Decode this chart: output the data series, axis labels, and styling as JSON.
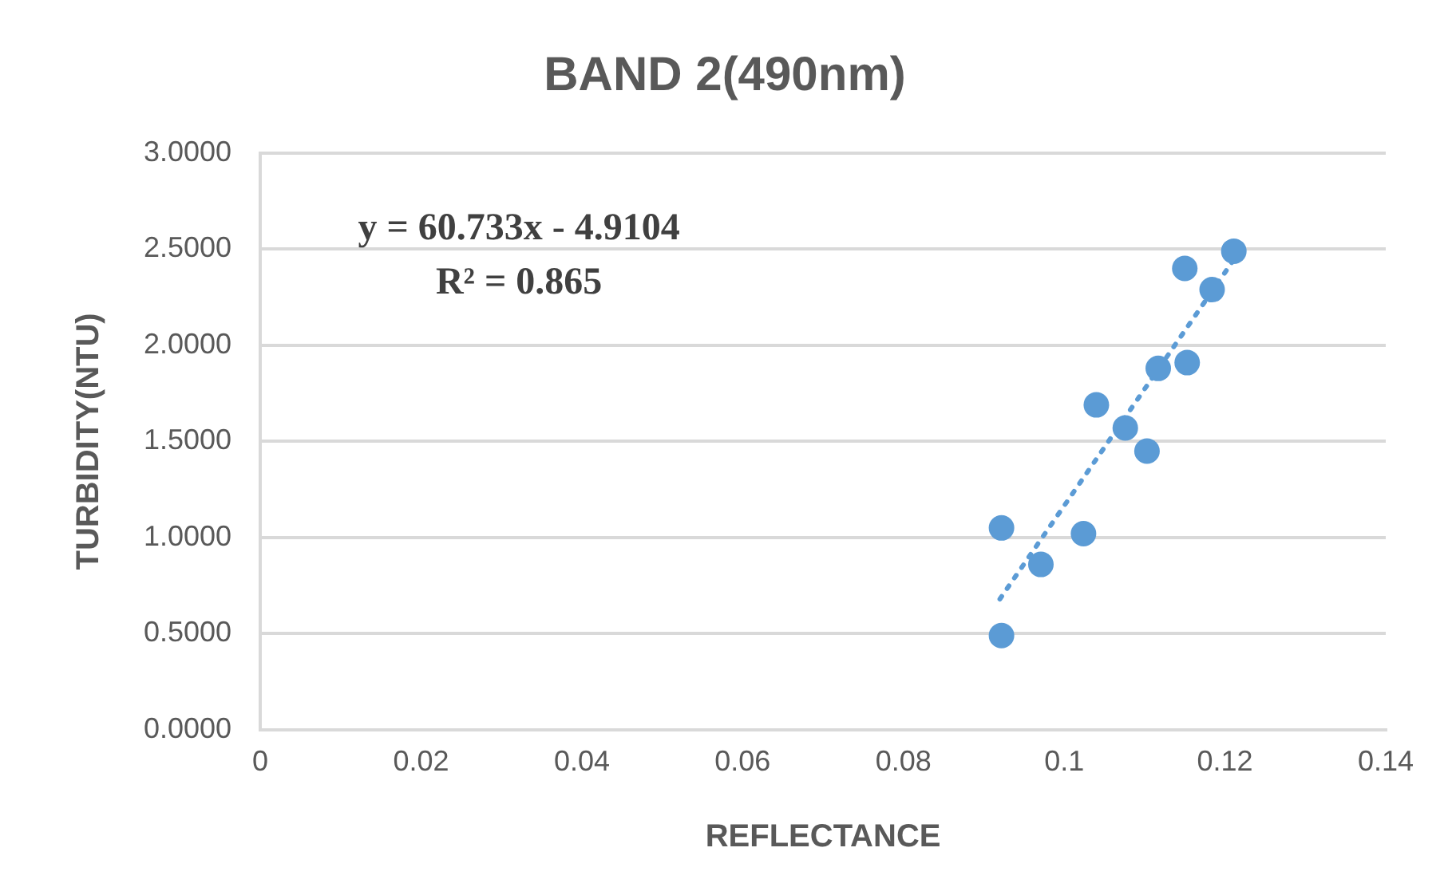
{
  "chart_data": {
    "type": "scatter",
    "title": "BAND 2(490nm)",
    "xlabel": "REFLECTANCE",
    "ylabel": "TURBIDITY(NTU)",
    "annotations": [
      "y = 60.733x - 4.9104",
      "R² = 0.865"
    ],
    "series": [
      {
        "color": "#5b9bd5",
        "marker": "circle",
        "x": [
          0.0922,
          0.0922,
          0.0971,
          0.1024,
          0.104,
          0.1076,
          0.1103,
          0.1117,
          0.1153,
          0.115,
          0.1184,
          0.1211
        ],
        "values": [
          1.05,
          0.49,
          0.86,
          1.02,
          1.69,
          1.57,
          1.45,
          1.88,
          1.91,
          2.4,
          2.29,
          2.49
        ]
      },
      {
        "type": "line",
        "color": "#5b9bd5",
        "marker": "none",
        "line_style": "dotted",
        "x": [
          0.092,
          0.121
        ],
        "values": [
          0.68,
          2.44
        ]
      }
    ],
    "xlim": [
      0,
      0.14
    ],
    "xticks": [
      0,
      0.02,
      0.04,
      0.06,
      0.08,
      0.1,
      0.12,
      0.14
    ],
    "ylim": [
      0,
      3
    ],
    "yticks": [
      {
        "value": 0,
        "label": "0.0000"
      },
      {
        "value": 0.5,
        "label": "0.5000"
      },
      {
        "value": 1,
        "label": "1.0000"
      },
      {
        "value": 1.5,
        "label": "1.5000"
      },
      {
        "value": 2,
        "label": "2.0000"
      },
      {
        "value": 2.5,
        "label": "2.5000"
      },
      {
        "value": 3,
        "label": "3.0000"
      }
    ],
    "grid": "y",
    "legend": false
  }
}
